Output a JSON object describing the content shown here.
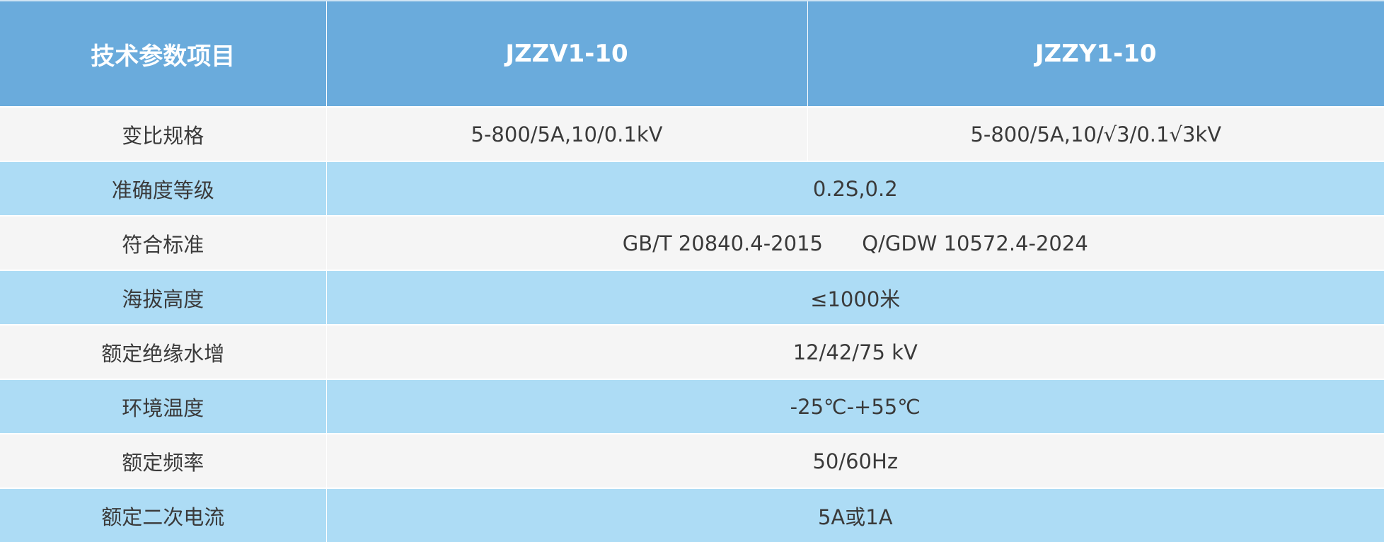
{
  "header": [
    "技术参数项目",
    "JZZV1-10",
    "JZZY1-10"
  ],
  "colors": {
    "header": "#6aabdc",
    "row_alt": "#addcf5",
    "row_light": "#f5f5f5"
  },
  "rows": [
    {
      "label": "变比规格",
      "v1": "5-800/5A,10/0.1kV",
      "v2": "5-800/5A,10/√3/0.1√3kV"
    },
    {
      "label": "准确度等级",
      "value": "0.2S,0.2"
    },
    {
      "label": "符合标准",
      "value": "GB/T 20840.4-2015      Q/GDW 10572.4-2024"
    },
    {
      "label": "海拔高度",
      "value": "≤1000米"
    },
    {
      "label": "额定绝缘水增",
      "value": "12/42/75 kV"
    },
    {
      "label": "环境温度",
      "value": "-25℃-+55℃"
    },
    {
      "label": "额定频率",
      "value": "50/60Hz"
    },
    {
      "label": "额定二次电流",
      "value": "5A或1A"
    }
  ]
}
